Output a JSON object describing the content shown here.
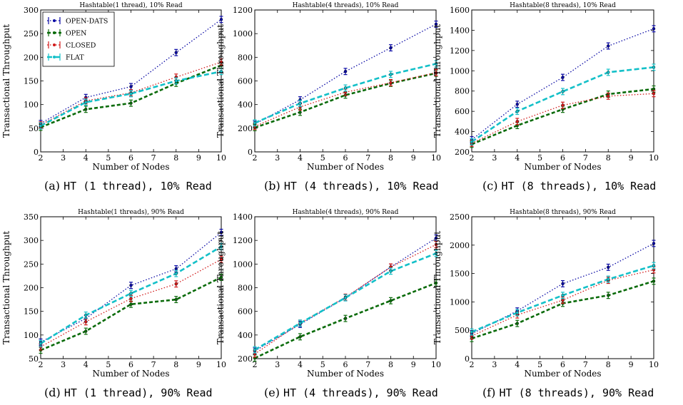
{
  "series_colors": [
    "#0a0aa5",
    "#0a6b0a",
    "#d11a1a",
    "#14c0c8"
  ],
  "captions": [
    {
      "tag": "(a)",
      "text": "HT (1 thread), 10% Read"
    },
    {
      "tag": "(b)",
      "text": "HT (4 threads), 10% Read"
    },
    {
      "tag": "(c)",
      "text": "HT (8 threads), 10% Read"
    },
    {
      "tag": "(d)",
      "text": "HT (1 thread), 90% Read"
    },
    {
      "tag": "(e)",
      "text": "HT (4 threads), 90% Read"
    },
    {
      "tag": "(f)",
      "text": "HT (8 threads), 90% Read"
    }
  ],
  "chart_data": [
    {
      "type": "line",
      "title": "Hashtable(1 thread), 10% Read",
      "xlabel": "Number of Nodes",
      "ylabel": "Transactional Throughput",
      "xlim": [
        2,
        10
      ],
      "ylim": [
        0,
        300
      ],
      "xticks": [
        2,
        3,
        4,
        5,
        6,
        7,
        8,
        9,
        10
      ],
      "yticks": [
        0,
        50,
        100,
        150,
        200,
        250,
        300
      ],
      "legend": "top-left",
      "x": [
        2,
        4,
        6,
        8,
        10
      ],
      "series": [
        {
          "name": "OPEN-DATS",
          "values": [
            60,
            115,
            138,
            210,
            280
          ]
        },
        {
          "name": "OPEN",
          "values": [
            52,
            90,
            103,
            145,
            183
          ]
        },
        {
          "name": "CLOSED",
          "values": [
            57,
            108,
            125,
            158,
            190
          ]
        },
        {
          "name": "FLAT",
          "values": [
            55,
            105,
            123,
            150,
            170
          ]
        }
      ]
    },
    {
      "type": "line",
      "title": "Hashtable(4 threads), 10% Read",
      "xlabel": "Number of Nodes",
      "ylabel": "Transactional Throughput",
      "xlim": [
        2,
        10
      ],
      "ylim": [
        0,
        1200
      ],
      "xticks": [
        2,
        3,
        4,
        5,
        6,
        7,
        8,
        9,
        10
      ],
      "yticks": [
        0,
        200,
        400,
        600,
        800,
        1000,
        1200
      ],
      "x": [
        2,
        4,
        6,
        8,
        10
      ],
      "series": [
        {
          "name": "OPEN-DATS",
          "values": [
            235,
            440,
            680,
            880,
            1080
          ]
        },
        {
          "name": "OPEN",
          "values": [
            205,
            335,
            480,
            580,
            665
          ]
        },
        {
          "name": "CLOSED",
          "values": [
            215,
            380,
            505,
            585,
            670
          ]
        },
        {
          "name": "FLAT",
          "values": [
            245,
            410,
            540,
            655,
            745
          ]
        }
      ]
    },
    {
      "type": "line",
      "title": "Hashtable(8 threads), 10% Read",
      "xlabel": "Number of Nodes",
      "ylabel": "Transactional Throughput",
      "xlim": [
        2,
        10
      ],
      "ylim": [
        200,
        1600
      ],
      "xticks": [
        2,
        3,
        4,
        5,
        6,
        7,
        8,
        9,
        10
      ],
      "yticks": [
        200,
        400,
        600,
        800,
        1000,
        1200,
        1400,
        1600
      ],
      "x": [
        2,
        4,
        6,
        8,
        10
      ],
      "series": [
        {
          "name": "OPEN-DATS",
          "values": [
            320,
            670,
            935,
            1245,
            1415
          ]
        },
        {
          "name": "OPEN",
          "values": [
            275,
            460,
            620,
            770,
            820
          ]
        },
        {
          "name": "CLOSED",
          "values": [
            285,
            500,
            660,
            750,
            775
          ]
        },
        {
          "name": "FLAT",
          "values": [
            300,
            600,
            795,
            985,
            1035
          ]
        }
      ]
    },
    {
      "type": "line",
      "title": "Hashtable(1 threads), 90% Read",
      "xlabel": "Number of Nodes",
      "ylabel": "Transactional Throughput",
      "xlim": [
        2,
        10
      ],
      "ylim": [
        50,
        350
      ],
      "xticks": [
        2,
        3,
        4,
        5,
        6,
        7,
        8,
        9,
        10
      ],
      "yticks": [
        50,
        100,
        150,
        200,
        250,
        300,
        350
      ],
      "x": [
        2,
        4,
        6,
        8,
        10
      ],
      "series": [
        {
          "name": "OPEN-DATS",
          "values": [
            85,
            135,
            205,
            240,
            317
          ]
        },
        {
          "name": "OPEN",
          "values": [
            68,
            108,
            165,
            175,
            222
          ]
        },
        {
          "name": "CLOSED",
          "values": [
            75,
            128,
            177,
            208,
            260
          ]
        },
        {
          "name": "FLAT",
          "values": [
            82,
            142,
            188,
            230,
            287
          ]
        }
      ]
    },
    {
      "type": "line",
      "title": "Hashtable(4 threads), 90% Read",
      "xlabel": "Number of Nodes",
      "ylabel": "Transactional Throughput",
      "xlim": [
        2,
        10
      ],
      "ylim": [
        200,
        1400
      ],
      "xticks": [
        2,
        3,
        4,
        5,
        6,
        7,
        8,
        9,
        10
      ],
      "yticks": [
        200,
        400,
        600,
        800,
        1000,
        1200,
        1400
      ],
      "x": [
        2,
        4,
        6,
        8,
        10
      ],
      "series": [
        {
          "name": "OPEN-DATS",
          "values": [
            265,
            490,
            715,
            975,
            1220
          ]
        },
        {
          "name": "OPEN",
          "values": [
            205,
            385,
            540,
            690,
            840
          ]
        },
        {
          "name": "CLOSED",
          "values": [
            240,
            500,
            720,
            975,
            1165
          ]
        },
        {
          "name": "FLAT",
          "values": [
            275,
            500,
            715,
            940,
            1090
          ]
        }
      ]
    },
    {
      "type": "line",
      "title": "Hashtable(8 threads), 90% Read",
      "xlabel": "Number of Nodes",
      "ylabel": "Transactional Throughput",
      "xlim": [
        2,
        10
      ],
      "ylim": [
        0,
        2500
      ],
      "xticks": [
        2,
        3,
        4,
        5,
        6,
        7,
        8,
        9,
        10
      ],
      "yticks": [
        0,
        500,
        1000,
        1500,
        2000,
        2500
      ],
      "x": [
        2,
        4,
        6,
        8,
        10
      ],
      "series": [
        {
          "name": "OPEN-DATS",
          "values": [
            440,
            840,
            1320,
            1610,
            2030
          ]
        },
        {
          "name": "OPEN",
          "values": [
            355,
            620,
            975,
            1115,
            1365
          ]
        },
        {
          "name": "CLOSED",
          "values": [
            400,
            770,
            1030,
            1380,
            1565
          ]
        },
        {
          "name": "FLAT",
          "values": [
            470,
            810,
            1115,
            1400,
            1640
          ]
        }
      ]
    }
  ]
}
